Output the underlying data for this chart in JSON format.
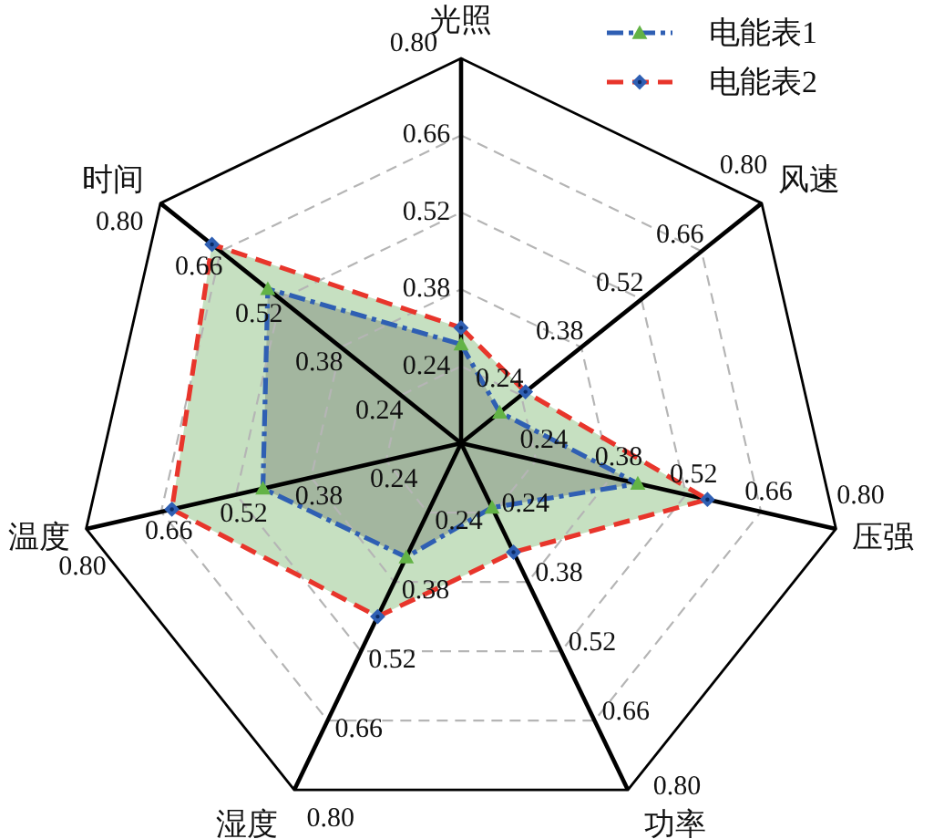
{
  "chart_data": {
    "type": "radar",
    "categories": [
      "光照",
      "风速",
      "压强",
      "功率",
      "湿度",
      "温度",
      "时间"
    ],
    "series": [
      {
        "name": "电能表1",
        "color": "#2f5fb3",
        "colors": [
          "#63b346",
          "#63b346",
          "#63b346",
          "#63b346",
          "#63b346",
          "#63b346",
          "#63b346"
        ],
        "marker": "triangle",
        "line_style": "dashdot",
        "values": [
          0.28,
          0.19,
          0.43,
          0.23,
          0.33,
          0.47,
          0.55
        ]
      },
      {
        "name": "电能表2",
        "color": "#e8352b",
        "colors": [
          "#2f5fb3",
          "#2f5fb3",
          "#2f5fb3",
          "#2f5fb3",
          "#2f5fb3",
          "#2f5fb3",
          "#2f5fb3"
        ],
        "marker": "diamond",
        "line_style": "dashed",
        "values": [
          0.31,
          0.25,
          0.56,
          0.32,
          0.45,
          0.64,
          0.68
        ]
      }
    ],
    "ylim": [
      0.1,
      0.8
    ],
    "yticks": [
      {
        "value": 0.24,
        "label": "0.24"
      },
      {
        "value": 0.38,
        "label": "0.38"
      },
      {
        "value": 0.52,
        "label": "0.52"
      },
      {
        "value": 0.66,
        "label": "0.66"
      },
      {
        "value": 0.8,
        "label": "0.80"
      }
    ],
    "grid": true,
    "legend": "top right"
  }
}
